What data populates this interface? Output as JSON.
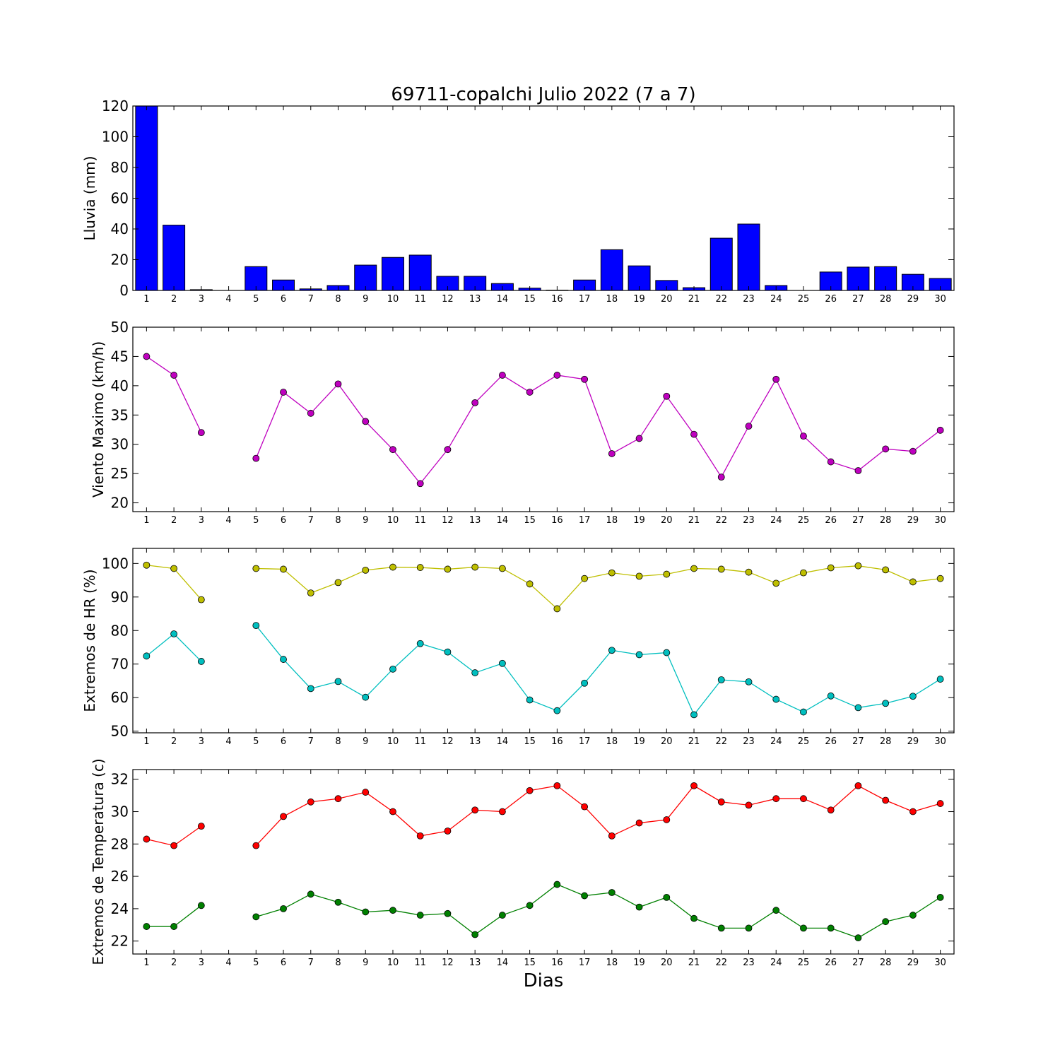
{
  "title": "69711-copalchi Julio 2022  (7 a 7)",
  "xlabel": "Dias",
  "chart_data": [
    {
      "type": "bar",
      "ylabel": "Lluvia (mm)",
      "ylim": [
        0,
        120
      ],
      "yticks": [
        0,
        20,
        40,
        60,
        80,
        100,
        120
      ],
      "xlim": [
        0.5,
        30.5
      ],
      "x": [
        1,
        2,
        3,
        4,
        5,
        6,
        7,
        8,
        9,
        10,
        11,
        12,
        13,
        14,
        15,
        16,
        17,
        18,
        19,
        20,
        21,
        22,
        23,
        24,
        25,
        26,
        27,
        28,
        29,
        30
      ],
      "series": [
        {
          "color": "#0000ff",
          "values": [
            120,
            42.5,
            0.5,
            0,
            15.5,
            6.8,
            1,
            3.2,
            16.5,
            21.5,
            23,
            9.2,
            9.2,
            4.5,
            1.5,
            0.2,
            6.8,
            26.5,
            16,
            6.5,
            1.8,
            34,
            43.2,
            3.2,
            0,
            12,
            15.2,
            15.5,
            10.5,
            7.8
          ]
        }
      ]
    },
    {
      "type": "line",
      "ylabel": "Viento Maximo (km/h)",
      "ylim": [
        18.5,
        50
      ],
      "yticks": [
        20,
        25,
        30,
        35,
        40,
        45,
        50
      ],
      "xlim": [
        0.5,
        30.5
      ],
      "x": [
        1,
        2,
        3,
        4,
        5,
        6,
        7,
        8,
        9,
        10,
        11,
        12,
        13,
        14,
        15,
        16,
        17,
        18,
        19,
        20,
        21,
        22,
        23,
        24,
        25,
        26,
        27,
        28,
        29,
        30
      ],
      "series": [
        {
          "color": "#bf00bf",
          "values": [
            45,
            41.8,
            32,
            null,
            27.6,
            38.9,
            35.3,
            40.3,
            33.9,
            29.1,
            23.3,
            29.1,
            37.1,
            41.8,
            38.9,
            41.8,
            41.1,
            28.4,
            31,
            38.2,
            31.7,
            24.4,
            33.1,
            41.1,
            31.4,
            27,
            25.5,
            29.2,
            28.8,
            32.4
          ]
        }
      ]
    },
    {
      "type": "line",
      "ylabel": "Extremos de HR (%)",
      "ylim": [
        49.5,
        104.5
      ],
      "yticks": [
        50,
        60,
        70,
        80,
        90,
        100
      ],
      "xlim": [
        0.5,
        30.5
      ],
      "x": [
        1,
        2,
        3,
        4,
        5,
        6,
        7,
        8,
        9,
        10,
        11,
        12,
        13,
        14,
        15,
        16,
        17,
        18,
        19,
        20,
        21,
        22,
        23,
        24,
        25,
        26,
        27,
        28,
        29,
        30
      ],
      "series": [
        {
          "color": "#bfbf00",
          "values": [
            99.5,
            98.5,
            89.2,
            null,
            98.5,
            98.3,
            91.2,
            94.3,
            98,
            98.9,
            98.8,
            98.3,
            98.9,
            98.5,
            93.9,
            86.5,
            95.5,
            97.2,
            96.2,
            96.8,
            98.5,
            98.3,
            97.4,
            94.1,
            97.2,
            98.7,
            99.3,
            98.1,
            94.5,
            95.5
          ]
        },
        {
          "color": "#00bfbf",
          "values": [
            72.4,
            79,
            70.8,
            null,
            81.5,
            71.4,
            62.7,
            64.8,
            60.1,
            68.5,
            76.1,
            73.6,
            67.4,
            70.2,
            59.3,
            56.1,
            64.3,
            74.1,
            72.8,
            73.4,
            54.9,
            65.3,
            64.7,
            59.5,
            55.7,
            60.5,
            57,
            58.3,
            60.4,
            65.5
          ]
        }
      ]
    },
    {
      "type": "line",
      "ylabel": "Extremos de Temperatura (c)",
      "ylim": [
        21.2,
        32.6
      ],
      "yticks": [
        22,
        24,
        26,
        28,
        30,
        32
      ],
      "xlim": [
        0.5,
        30.5
      ],
      "x": [
        1,
        2,
        3,
        4,
        5,
        6,
        7,
        8,
        9,
        10,
        11,
        12,
        13,
        14,
        15,
        16,
        17,
        18,
        19,
        20,
        21,
        22,
        23,
        24,
        25,
        26,
        27,
        28,
        29,
        30
      ],
      "series": [
        {
          "color": "#ff0000",
          "values": [
            28.3,
            27.9,
            29.1,
            null,
            27.9,
            29.7,
            30.6,
            30.8,
            31.2,
            30,
            28.5,
            28.8,
            30.1,
            30,
            31.3,
            31.6,
            30.3,
            28.5,
            29.3,
            29.5,
            31.6,
            30.6,
            30.4,
            30.8,
            30.8,
            30.1,
            31.6,
            30.7,
            30,
            30.5
          ]
        },
        {
          "color": "#008000",
          "values": [
            22.9,
            22.9,
            24.2,
            null,
            23.5,
            24,
            24.9,
            24.4,
            23.8,
            23.9,
            23.6,
            23.7,
            22.4,
            23.6,
            24.2,
            25.5,
            24.8,
            25,
            24.1,
            24.7,
            23.4,
            22.8,
            22.8,
            23.9,
            22.8,
            22.8,
            22.2,
            23.2,
            23.6,
            24.7
          ]
        }
      ]
    }
  ]
}
